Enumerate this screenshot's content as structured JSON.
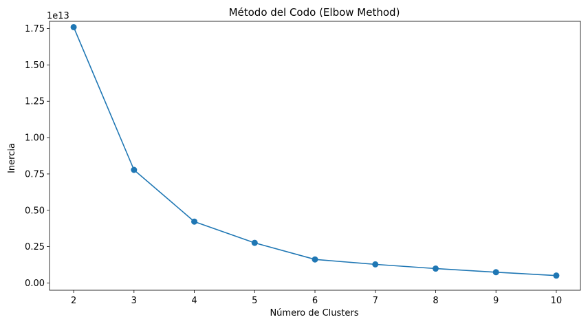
{
  "chart_data": {
    "type": "line",
    "title": "Método del Codo (Elbow Method)",
    "xlabel": "Número de Clusters",
    "ylabel": "Inercia",
    "y_offset_label": "1e13",
    "y_scale_factor": 10000000000000.0,
    "x": [
      2,
      3,
      4,
      5,
      6,
      7,
      8,
      9,
      10
    ],
    "series": [
      {
        "values": [
          17600000000000.0,
          7780000000000.0,
          4220000000000.0,
          2760000000000.0,
          1620000000000.0,
          1280000000000.0,
          990000000000.0,
          740000000000.0,
          510000000000.0
        ],
        "color": "#1f77b4",
        "marker": "circle"
      }
    ],
    "xlim": [
      1.6,
      10.4
    ],
    "ylim": [
      -500000000000.0,
      18000000000000.0
    ],
    "xticks": [
      2,
      3,
      4,
      5,
      6,
      7,
      8,
      9,
      10
    ],
    "xtick_labels": [
      "2",
      "3",
      "4",
      "5",
      "6",
      "7",
      "8",
      "9",
      "10"
    ],
    "yticks": [
      0,
      2500000000000.0,
      5000000000000.0,
      7500000000000.0,
      10000000000000.0,
      12500000000000.0,
      15000000000000.0,
      17500000000000.0
    ],
    "ytick_labels": [
      "0.00",
      "0.25",
      "0.50",
      "0.75",
      "1.00",
      "1.25",
      "1.50",
      "1.75"
    ],
    "grid": false,
    "legend": "none"
  }
}
